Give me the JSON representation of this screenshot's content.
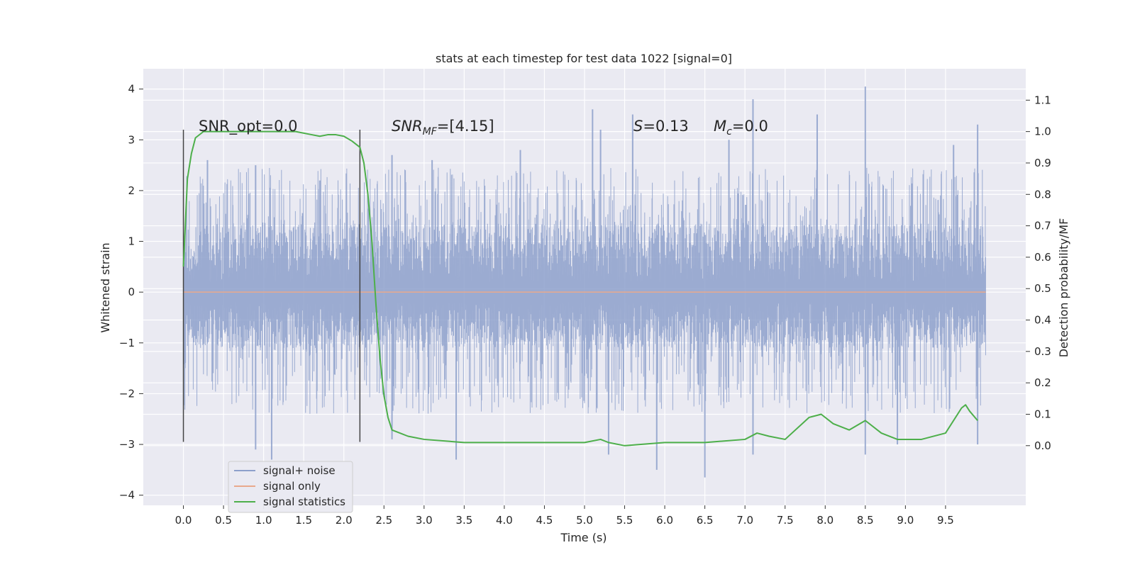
{
  "chart_data": {
    "type": "line",
    "title": "stats at each timestep for test data 1022 [signal=0]",
    "xlabel": "Time (s)",
    "ylabel": "Whitened strain",
    "y2label": "Detection probability/MF",
    "xlim": [
      -0.5,
      10.5
    ],
    "ylim": [
      -4.2,
      4.4
    ],
    "y2lim": [
      -0.19,
      1.2
    ],
    "xticks": [
      "0.0",
      "0.5",
      "1.0",
      "1.5",
      "2.0",
      "2.5",
      "3.0",
      "3.5",
      "4.0",
      "4.5",
      "5.0",
      "5.5",
      "6.0",
      "6.5",
      "7.0",
      "7.5",
      "8.0",
      "8.5",
      "9.0",
      "9.5"
    ],
    "yticks": [
      "4",
      "3",
      "2",
      "1",
      "0",
      "−1",
      "−2",
      "−3",
      "−4"
    ],
    "y2ticks": [
      "1.1",
      "1.0",
      "0.9",
      "0.8",
      "0.7",
      "0.6",
      "0.5",
      "0.4",
      "0.3",
      "0.2",
      "0.1",
      "0.0"
    ],
    "grid": true,
    "legend_position": "lower-left",
    "annotations": {
      "snr_opt": "SNR_opt=0.0",
      "snr_mf_main": "SNR",
      "snr_mf_sub": "MF",
      "snr_mf_value": "=[4.15]",
      "s_symbol": "S",
      "s_value": "=0.13",
      "mc_symbol": "M",
      "mc_sub": "c",
      "mc_value": "=0.0"
    },
    "vlines_x": [
      0.0,
      2.2
    ],
    "series": [
      {
        "name": "signal+ noise",
        "color": "#8da0cb",
        "axis": "left",
        "x_range": [
          0.0,
          10.0
        ],
        "envelope": {
          "typical_pos": 1.35,
          "typical_neg": -1.1,
          "peak_pos": [
            [
              0.3,
              2.6
            ],
            [
              0.9,
              2.5
            ],
            [
              1.7,
              2.2
            ],
            [
              2.6,
              2.7
            ],
            [
              3.1,
              2.6
            ],
            [
              4.2,
              2.8
            ],
            [
              5.1,
              3.6
            ],
            [
              5.2,
              3.2
            ],
            [
              5.6,
              3.5
            ],
            [
              6.8,
              3.0
            ],
            [
              7.1,
              3.8
            ],
            [
              7.9,
              3.5
            ],
            [
              8.5,
              4.05
            ],
            [
              9.6,
              2.9
            ],
            [
              9.9,
              3.3
            ]
          ],
          "peak_neg": [
            [
              0.9,
              -3.1
            ],
            [
              1.1,
              -3.3
            ],
            [
              2.6,
              -2.9
            ],
            [
              3.4,
              -3.3
            ],
            [
              5.3,
              -3.2
            ],
            [
              5.9,
              -3.5
            ],
            [
              6.5,
              -3.65
            ],
            [
              7.1,
              -3.2
            ],
            [
              8.5,
              -3.2
            ],
            [
              8.9,
              -3.0
            ],
            [
              9.9,
              -3.0
            ]
          ]
        }
      },
      {
        "name": "signal only",
        "color": "#e9a98c",
        "axis": "left",
        "x": [
          0.0,
          10.0
        ],
        "y": [
          0.0,
          0.0
        ]
      },
      {
        "name": "signal statistics",
        "color": "#4daf4a",
        "axis": "right",
        "x": [
          0.0,
          0.05,
          0.1,
          0.15,
          0.25,
          0.5,
          1.0,
          1.4,
          1.6,
          1.7,
          1.8,
          1.9,
          2.0,
          2.1,
          2.2,
          2.25,
          2.3,
          2.35,
          2.4,
          2.45,
          2.5,
          2.55,
          2.6,
          2.7,
          2.8,
          3.0,
          3.5,
          4.0,
          4.5,
          5.0,
          5.2,
          5.3,
          5.5,
          6.0,
          6.5,
          7.0,
          7.15,
          7.3,
          7.5,
          7.8,
          7.95,
          8.1,
          8.3,
          8.5,
          8.7,
          8.9,
          9.2,
          9.5,
          9.7,
          9.75,
          9.8,
          9.9
        ],
        "y": [
          0.57,
          0.85,
          0.93,
          0.98,
          1.0,
          1.0,
          1.0,
          1.0,
          0.99,
          0.985,
          0.99,
          0.99,
          0.985,
          0.97,
          0.95,
          0.9,
          0.8,
          0.65,
          0.45,
          0.28,
          0.16,
          0.09,
          0.05,
          0.04,
          0.03,
          0.02,
          0.01,
          0.01,
          0.01,
          0.01,
          0.02,
          0.01,
          0.0,
          0.01,
          0.01,
          0.02,
          0.04,
          0.03,
          0.02,
          0.09,
          0.1,
          0.07,
          0.05,
          0.08,
          0.04,
          0.02,
          0.02,
          0.04,
          0.12,
          0.13,
          0.11,
          0.08
        ]
      }
    ]
  }
}
